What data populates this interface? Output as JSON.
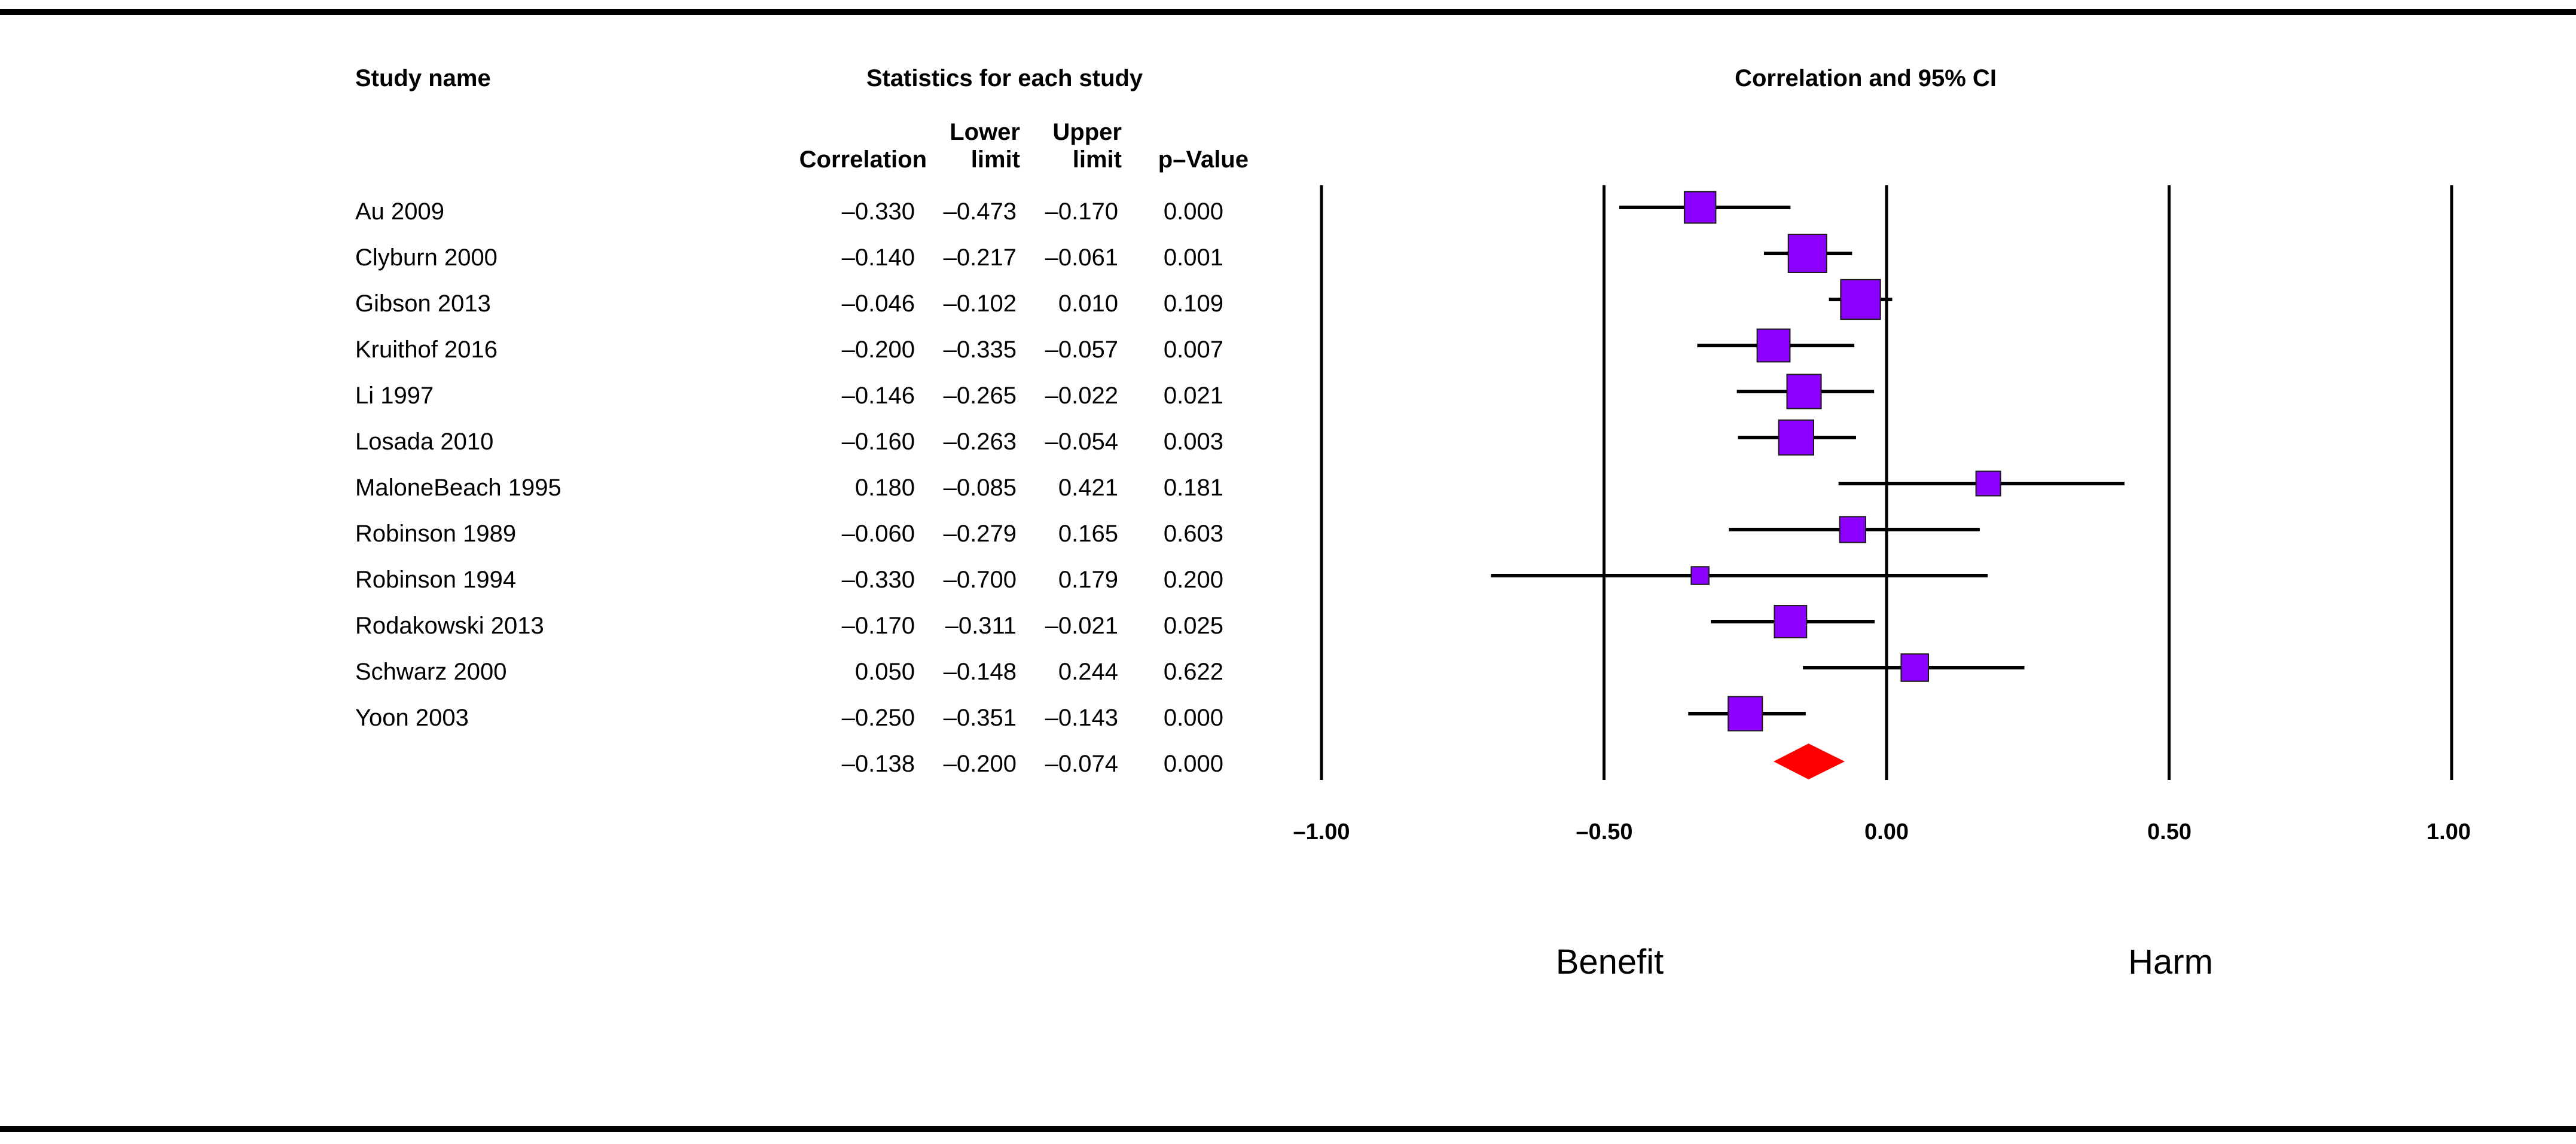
{
  "chart_data": {
    "type": "forest",
    "headers": {
      "study_name": "Study name",
      "statistics": "Statistics for each study",
      "plot_title": "Correlation and 95% CI",
      "correlation": "Correlation",
      "lower_top": "Lower",
      "lower_bottom": "limit",
      "upper_top": "Upper",
      "upper_bottom": "limit",
      "pvalue": "p–Value"
    },
    "studies": [
      {
        "name": "Au 2009",
        "r": -0.33,
        "lower": -0.473,
        "upper": -0.17,
        "p": "0.000",
        "r_text": "–0.330",
        "lower_text": "–0.473",
        "upper_text": "–0.170",
        "weight": 0.75
      },
      {
        "name": "Clyburn 2000",
        "r": -0.14,
        "lower": -0.217,
        "upper": -0.061,
        "p": "0.001",
        "r_text": "–0.140",
        "lower_text": "–0.217",
        "upper_text": "–0.061",
        "weight": 1.0
      },
      {
        "name": "Gibson 2013",
        "r": -0.046,
        "lower": -0.102,
        "upper": 0.01,
        "p": "0.109",
        "r_text": "–0.046",
        "lower_text": "–0.102",
        "upper_text": "0.010",
        "weight": 1.05
      },
      {
        "name": "Kruithof 2016",
        "r": -0.2,
        "lower": -0.335,
        "upper": -0.057,
        "p": "0.007",
        "r_text": "–0.200",
        "lower_text": "–0.335",
        "upper_text": "–0.057",
        "weight": 0.8
      },
      {
        "name": "Li 1997",
        "r": -0.146,
        "lower": -0.265,
        "upper": -0.022,
        "p": "0.021",
        "r_text": "–0.146",
        "lower_text": "–0.265",
        "upper_text": "–0.022",
        "weight": 0.85
      },
      {
        "name": "Losada 2010",
        "r": -0.16,
        "lower": -0.263,
        "upper": -0.054,
        "p": "0.003",
        "r_text": "–0.160",
        "lower_text": "–0.263",
        "upper_text": "–0.054",
        "weight": 0.88
      },
      {
        "name": "MaloneBeach 1995",
        "r": 0.18,
        "lower": -0.085,
        "upper": 0.421,
        "p": "0.181",
        "r_text": "0.180",
        "lower_text": "–0.085",
        "upper_text": "0.421",
        "weight": 0.5
      },
      {
        "name": "Robinson 1989",
        "r": -0.06,
        "lower": -0.279,
        "upper": 0.165,
        "p": "0.603",
        "r_text": "–0.060",
        "lower_text": "–0.279",
        "upper_text": "0.165",
        "weight": 0.55
      },
      {
        "name": "Robinson 1994",
        "r": -0.33,
        "lower": -0.7,
        "upper": 0.179,
        "p": "0.200",
        "r_text": "–0.330",
        "lower_text": "–0.700",
        "upper_text": "0.179",
        "weight": 0.25
      },
      {
        "name": "Rodakowski 2013",
        "r": -0.17,
        "lower": -0.311,
        "upper": -0.021,
        "p": "0.025",
        "r_text": "–0.170",
        "lower_text": "–0.311",
        "upper_text": "–0.021",
        "weight": 0.78
      },
      {
        "name": "Schwarz 2000",
        "r": 0.05,
        "lower": -0.148,
        "upper": 0.244,
        "p": "0.622",
        "r_text": "0.050",
        "lower_text": "–0.148",
        "upper_text": "0.244",
        "weight": 0.6
      },
      {
        "name": "Yoon 2003",
        "r": -0.25,
        "lower": -0.351,
        "upper": -0.143,
        "p": "0.000",
        "r_text": "–0.250",
        "lower_text": "–0.351",
        "upper_text": "–0.143",
        "weight": 0.85
      }
    ],
    "summary": {
      "r": -0.138,
      "lower": -0.2,
      "upper": -0.074,
      "p": "0.000",
      "r_text": "–0.138",
      "lower_text": "–0.200",
      "upper_text": "–0.074"
    },
    "xlim": [
      -1.0,
      1.0
    ],
    "xticks": [
      -1.0,
      -0.5,
      0.0,
      0.5,
      1.0
    ],
    "xtick_labels": [
      "–1.00",
      "–0.50",
      "0.00",
      "0.50",
      "1.00"
    ],
    "region_labels": {
      "left": "Benefit",
      "right": "Harm"
    },
    "colors": {
      "study_marker": "#8b00ff",
      "summary_marker": "#ff0000",
      "line": "#000000"
    }
  }
}
